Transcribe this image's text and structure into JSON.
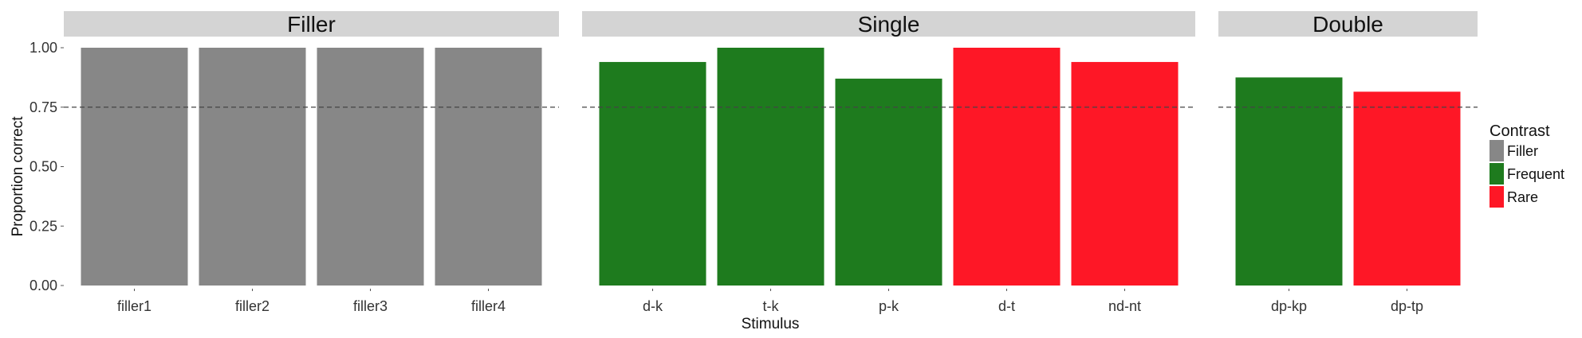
{
  "chart_data": {
    "type": "bar",
    "xlabel": "Stimulus",
    "ylabel": "Proportion correct",
    "ylim": [
      0,
      1
    ],
    "yticks": [
      "0.00",
      "0.25",
      "0.50",
      "0.75",
      "1.00"
    ],
    "ytick_values": [
      0,
      0.25,
      0.5,
      0.75,
      1.0
    ],
    "reference_line": {
      "y": 0.75,
      "style": "dashed"
    },
    "grid": false,
    "legend": {
      "title": "Contrast",
      "placement": "right",
      "items": [
        {
          "name": "Filler",
          "color": "#878787"
        },
        {
          "name": "Frequent",
          "color": "#1e7b1e"
        },
        {
          "name": "Rare",
          "color": "#fe1726"
        }
      ]
    },
    "panels": [
      {
        "title": "Filler",
        "categories": [
          "filler1",
          "filler2",
          "filler3",
          "filler4"
        ],
        "values": [
          1.0,
          1.0,
          1.0,
          1.0
        ],
        "contrast": [
          "Filler",
          "Filler",
          "Filler",
          "Filler"
        ]
      },
      {
        "title": "Single",
        "categories": [
          "d-k",
          "t-k",
          "p-k",
          "d-t",
          "nd-nt"
        ],
        "values": [
          0.94,
          1.0,
          0.87,
          1.0,
          0.94
        ],
        "contrast": [
          "Frequent",
          "Frequent",
          "Frequent",
          "Rare",
          "Rare"
        ]
      },
      {
        "title": "Double",
        "categories": [
          "dp-kp",
          "dp-tp"
        ],
        "values": [
          0.875,
          0.815
        ],
        "contrast": [
          "Frequent",
          "Rare"
        ]
      }
    ]
  }
}
